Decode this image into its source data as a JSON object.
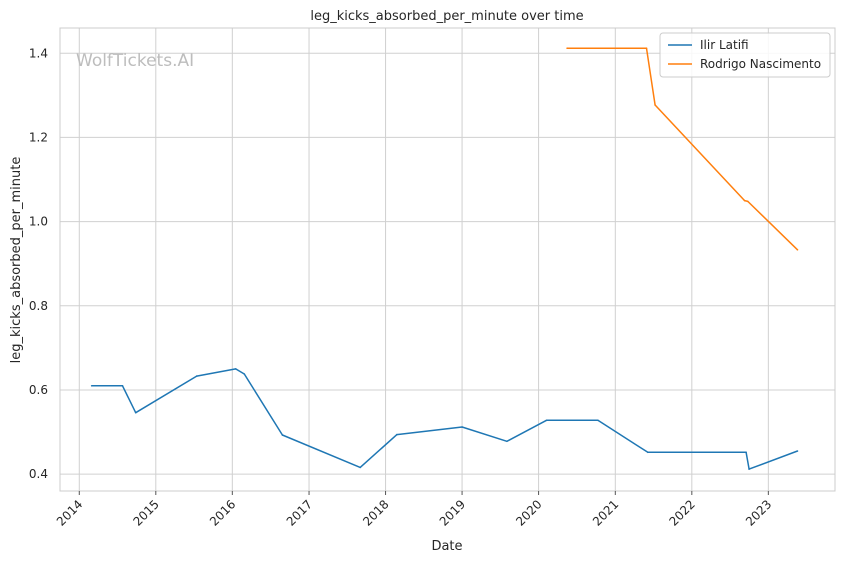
{
  "chart_data": {
    "type": "line",
    "title": "leg_kicks_absorbed_per_minute over time",
    "xlabel": "Date",
    "ylabel": "leg_kicks_absorbed_per_minute",
    "watermark": "WolfTickets.AI",
    "x_ticks": [
      "2014",
      "2015",
      "2016",
      "2017",
      "2018",
      "2019",
      "2020",
      "2021",
      "2022",
      "2023"
    ],
    "y_ticks": [
      "0.4",
      "0.6",
      "0.8",
      "1.0",
      "1.2",
      "1.4"
    ],
    "xlim": [
      "2013-10-01",
      "2023-11-15"
    ],
    "ylim": [
      0.36,
      1.46
    ],
    "grid": true,
    "legend_position": "top-right",
    "series": [
      {
        "name": "Ilir Latifi",
        "color": "#1f77b4",
        "points": [
          [
            "2014-03-01",
            0.61
          ],
          [
            "2014-07-26",
            0.61
          ],
          [
            "2014-09-27",
            0.546
          ],
          [
            "2015-07-15",
            0.633
          ],
          [
            "2016-01-17",
            0.65
          ],
          [
            "2016-02-27",
            0.638
          ],
          [
            "2016-08-27",
            0.493
          ],
          [
            "2017-09-02",
            0.416
          ],
          [
            "2018-02-24",
            0.494
          ],
          [
            "2019-01-01",
            0.512
          ],
          [
            "2019-08-03",
            0.478
          ],
          [
            "2020-02-08",
            0.528
          ],
          [
            "2020-10-10",
            0.528
          ],
          [
            "2021-06-05",
            0.452
          ],
          [
            "2022-09-17",
            0.452
          ],
          [
            "2022-10-01",
            0.412
          ],
          [
            "2023-05-20",
            0.455
          ]
        ]
      },
      {
        "name": "Rodrigo Nascimento",
        "color": "#ff7f0e",
        "points": [
          [
            "2020-05-16",
            1.412
          ],
          [
            "2021-05-30",
            1.412
          ],
          [
            "2021-07-10",
            1.277
          ],
          [
            "2022-09-10",
            1.05
          ],
          [
            "2022-09-25",
            1.048
          ],
          [
            "2023-05-20",
            0.933
          ]
        ]
      }
    ]
  }
}
